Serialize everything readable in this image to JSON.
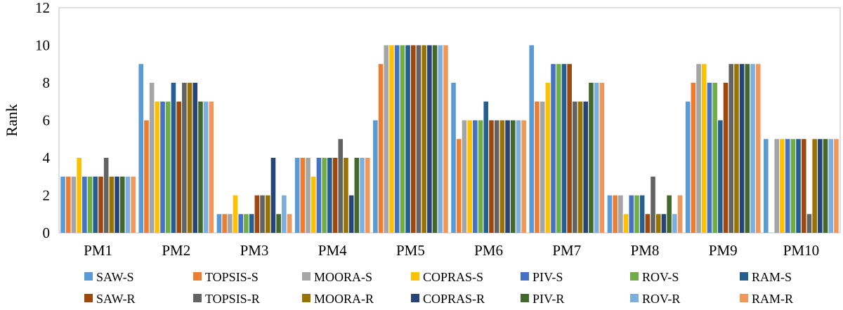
{
  "chart_data": {
    "type": "bar",
    "title": "",
    "xlabel": "",
    "ylabel": "Rank",
    "ylim": [
      0,
      12
    ],
    "yticks": [
      0,
      2,
      4,
      6,
      8,
      10,
      12
    ],
    "grid": false,
    "legend_position": "bottom",
    "categories": [
      "PM1",
      "PM2",
      "PM3",
      "PM4",
      "PM5",
      "PM6",
      "PM7",
      "PM8",
      "PM9",
      "PM10"
    ],
    "series": [
      {
        "name": "SAW-S",
        "color": "#5B9BD5",
        "values": [
          3,
          9,
          1,
          4,
          6,
          8,
          10,
          2,
          7,
          5
        ]
      },
      {
        "name": "TOPSIS-S",
        "color": "#ED7D31",
        "values": [
          3,
          6,
          1,
          4,
          9,
          5,
          7,
          2,
          8,
          0
        ]
      },
      {
        "name": "MOORA-S",
        "color": "#A5A5A5",
        "values": [
          3,
          8,
          1,
          4,
          10,
          6,
          7,
          2,
          9,
          5
        ]
      },
      {
        "name": "COPRAS-S",
        "color": "#FFC000",
        "values": [
          4,
          7,
          2,
          3,
          10,
          6,
          8,
          1,
          9,
          5
        ]
      },
      {
        "name": "PIV-S",
        "color": "#4472C4",
        "values": [
          3,
          7,
          1,
          4,
          10,
          6,
          9,
          2,
          8,
          5
        ]
      },
      {
        "name": "ROV-S",
        "color": "#70AD47",
        "values": [
          3,
          7,
          1,
          4,
          10,
          6,
          9,
          2,
          8,
          5
        ]
      },
      {
        "name": "RAM-S",
        "color": "#255E91",
        "values": [
          3,
          8,
          1,
          4,
          10,
          7,
          9,
          2,
          6,
          5
        ]
      },
      {
        "name": "SAW-R",
        "color": "#9E480E",
        "values": [
          3,
          7,
          2,
          4,
          10,
          6,
          9,
          1,
          8,
          5
        ]
      },
      {
        "name": "TOPSIS-R",
        "color": "#636363",
        "values": [
          4,
          8,
          2,
          5,
          10,
          6,
          7,
          3,
          9,
          1
        ]
      },
      {
        "name": "MOORA-R",
        "color": "#997300",
        "values": [
          3,
          8,
          2,
          4,
          10,
          6,
          7,
          1,
          9,
          5
        ]
      },
      {
        "name": "COPRAS-R",
        "color": "#264478",
        "values": [
          3,
          8,
          4,
          2,
          10,
          6,
          7,
          1,
          9,
          5
        ]
      },
      {
        "name": "PIV-R",
        "color": "#43682B",
        "values": [
          3,
          7,
          1,
          4,
          10,
          6,
          8,
          2,
          9,
          5
        ]
      },
      {
        "name": "ROV-R",
        "color": "#7CAFDD",
        "values": [
          3,
          7,
          2,
          4,
          10,
          6,
          8,
          1,
          9,
          5
        ]
      },
      {
        "name": "RAM-R",
        "color": "#F1975A",
        "values": [
          3,
          7,
          1,
          4,
          10,
          6,
          8,
          2,
          9,
          5
        ]
      }
    ]
  }
}
